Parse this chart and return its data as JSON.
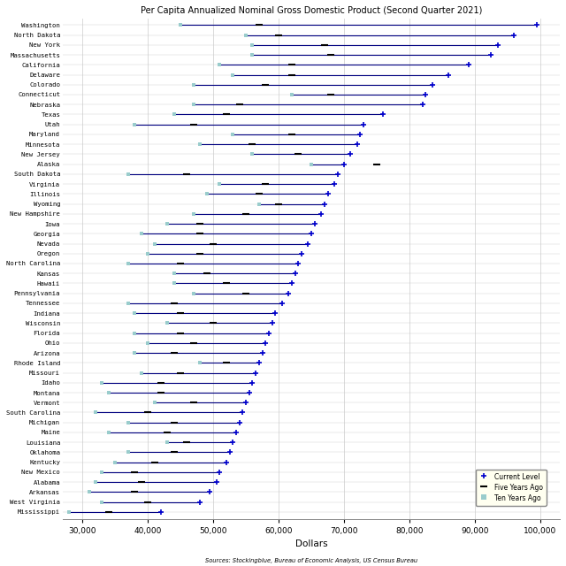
{
  "title": "Per Capita Annualized Nominal Gross Domestic Product (Second Quarter 2021)",
  "xlabel": "Dollars",
  "source_text": "Sources: Stockingblue, Bureau of Economic Analysis, US Census Bureau",
  "xlim": [
    27000,
    103000
  ],
  "xticks": [
    30000,
    40000,
    50000,
    60000,
    70000,
    80000,
    90000,
    100000
  ],
  "states": [
    "Washington",
    "North Dakota",
    "New York",
    "Massachusetts",
    "California",
    "Delaware",
    "Colorado",
    "Connecticut",
    "Nebraska",
    "Texas",
    "Utah",
    "Maryland",
    "Minnesota",
    "New Jersey",
    "Alaska",
    "South Dakota",
    "Virginia",
    "Illinois",
    "Wyoming",
    "New Hampshire",
    "Iowa",
    "Georgia",
    "Nevada",
    "Oregon",
    "North Carolina",
    "Kansas",
    "Hawaii",
    "Pennsylvania",
    "Tennessee",
    "Indiana",
    "Wisconsin",
    "Florida",
    "Ohio",
    "Arizona",
    "Rhode Island",
    "Missouri",
    "Idaho",
    "Montana",
    "Vermont",
    "South Carolina",
    "Michigan",
    "Maine",
    "Louisiana",
    "Oklahoma",
    "Kentucky",
    "New Mexico",
    "Alabama",
    "Arkansas",
    "West Virginia",
    "Mississippi"
  ],
  "current": [
    99500,
    96000,
    93500,
    92500,
    89000,
    86000,
    83500,
    82500,
    82000,
    76000,
    73000,
    72500,
    72000,
    71000,
    70000,
    69000,
    68500,
    67500,
    67000,
    66500,
    65500,
    65000,
    64500,
    63500,
    63000,
    62500,
    62000,
    61500,
    60500,
    59500,
    59000,
    58500,
    58000,
    57500,
    57000,
    56500,
    56000,
    55500,
    55000,
    54500,
    54000,
    53500,
    53000,
    52500,
    52000,
    51000,
    50500,
    49500,
    48000,
    42000
  ],
  "five_years_ago": [
    57000,
    60000,
    67000,
    68000,
    62000,
    62000,
    58000,
    68000,
    54000,
    52000,
    47000,
    62000,
    56000,
    63000,
    75000,
    46000,
    58000,
    57000,
    60000,
    55000,
    48000,
    48000,
    50000,
    48000,
    45000,
    49000,
    52000,
    55000,
    44000,
    45000,
    50000,
    45000,
    47000,
    44000,
    52000,
    45000,
    42000,
    42000,
    47000,
    40000,
    44000,
    43000,
    46000,
    44000,
    41000,
    38000,
    39000,
    38000,
    40000,
    34000
  ],
  "ten_years_ago": [
    45000,
    55000,
    56000,
    56000,
    51000,
    53000,
    47000,
    62000,
    47000,
    44000,
    38000,
    53000,
    48000,
    56000,
    65000,
    37000,
    51000,
    49000,
    57000,
    47000,
    43000,
    39000,
    41000,
    40000,
    37000,
    44000,
    44000,
    47000,
    37000,
    38000,
    43000,
    38000,
    40000,
    38000,
    48000,
    39000,
    33000,
    34000,
    41000,
    32000,
    37000,
    34000,
    43000,
    37000,
    35000,
    33000,
    32000,
    31000,
    33000,
    28000
  ],
  "current_color": "#0000CC",
  "five_years_color": "#90EE90",
  "ten_years_color": "#99CCCC",
  "line_color": "#000080",
  "background_color": "#FFFFFF",
  "grid_color": "#CCCCCC",
  "legend_bg": "#FFFFF0"
}
